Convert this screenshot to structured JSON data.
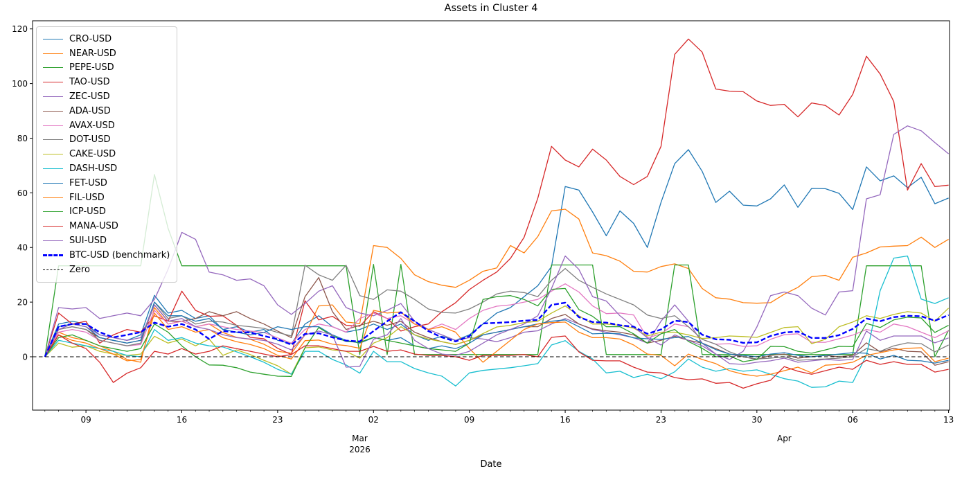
{
  "title": "Assets in Cluster 4",
  "xlabel": "Date",
  "chart_data": {
    "type": "line",
    "title": "Assets in Cluster 4",
    "xlabel": "Date",
    "ylabel": "",
    "grid": false,
    "legend_position": "upper left",
    "ylim": [
      -19.5,
      123
    ],
    "yticks": [
      0,
      20,
      40,
      60,
      80,
      100,
      120
    ],
    "x_start_date": "2026-02-06",
    "x_unit": "days",
    "n_days": 67,
    "xticks": [
      {
        "day": 3,
        "label": "09"
      },
      {
        "day": 10,
        "label": "16"
      },
      {
        "day": 17,
        "label": "23"
      },
      {
        "day": 24,
        "label": "02"
      },
      {
        "day": 31,
        "label": "09"
      },
      {
        "day": 38,
        "label": "16"
      },
      {
        "day": 45,
        "label": "23"
      },
      {
        "day": 52,
        "label": "30"
      },
      {
        "day": 59,
        "label": "06"
      },
      {
        "day": 66,
        "label": "13"
      }
    ],
    "month_labels": [
      {
        "day": 23,
        "label": "Mar",
        "year": "2026"
      },
      {
        "day": 54,
        "label": "Apr",
        "year": ""
      }
    ],
    "series": [
      {
        "name": "CRO-USD",
        "color": "#1f77b4",
        "dash": false,
        "lw": 1.3,
        "values": [
          0,
          12,
          13,
          12,
          8,
          7,
          6,
          8,
          22.5,
          16,
          17,
          14,
          15,
          10,
          11,
          9,
          10,
          6,
          4.8,
          12,
          15,
          11,
          9,
          10,
          12,
          10,
          12,
          8,
          6,
          7.5,
          6,
          8,
          12,
          16,
          18,
          22,
          26,
          33,
          62.3,
          61,
          53,
          44.3,
          53.4,
          48.8,
          40,
          56.5,
          70.7,
          75.8,
          67.9,
          56.5,
          60.6,
          55.5,
          55.2,
          57.8,
          62.9,
          54.7,
          61.6,
          61.5,
          59.8,
          53.9,
          69.5,
          64.4,
          66.2,
          61.9,
          65.7,
          56,
          58.1
        ]
      },
      {
        "name": "NEAR-USD",
        "color": "#ff7f0e",
        "dash": false,
        "lw": 1.3,
        "values": [
          0,
          9,
          7,
          6,
          4,
          2,
          -1,
          -2,
          18,
          12,
          13,
          11,
          12,
          8.9,
          7.1,
          6.4,
          4.6,
          2,
          1.3,
          8,
          18.6,
          19,
          12.7,
          12.2,
          40.7,
          40,
          36,
          30,
          27.5,
          26.2,
          25.4,
          28,
          31.3,
          32.5,
          40.7,
          38,
          44,
          53.4,
          54,
          50.4,
          38,
          37,
          35,
          31.3,
          31,
          33,
          34,
          32.3,
          25,
          21.6,
          21.1,
          19.8,
          19.6,
          19.8,
          22.9,
          25.4,
          29.3,
          29.8,
          28,
          36.4,
          38,
          40.2,
          40.5,
          40.7,
          43.8,
          40,
          43
        ]
      },
      {
        "name": "PEPE-USD",
        "color": "#2ca02c",
        "dash": false,
        "lw": 1.3,
        "values": [
          0,
          33.3,
          33.3,
          33.3,
          33.3,
          33.3,
          33.3,
          33.3,
          66.7,
          47,
          33.3,
          33.3,
          33.3,
          33.3,
          33.3,
          33.3,
          33.3,
          33.3,
          33.3,
          33.3,
          33.3,
          33.3,
          33.3,
          0.8,
          33.8,
          0.8,
          33.8,
          0.8,
          0.8,
          0.8,
          0.8,
          0.8,
          0.8,
          0.8,
          0.8,
          0.8,
          0.8,
          33.6,
          33.6,
          33.6,
          33.6,
          0.8,
          0.8,
          0.8,
          0.8,
          0.8,
          33.6,
          33.6,
          0.8,
          0.8,
          0.8,
          0.8,
          0.8,
          0.8,
          0.8,
          0.8,
          0.8,
          0.8,
          0.8,
          0.8,
          33.3,
          33.3,
          33.3,
          33.3,
          33.3,
          0,
          9.7
        ]
      },
      {
        "name": "TAO-USD",
        "color": "#d62728",
        "dash": false,
        "lw": 1.3,
        "values": [
          0,
          16,
          12,
          13,
          5,
          8,
          10,
          9,
          15,
          13,
          24,
          17,
          14.8,
          15,
          11.5,
          7.1,
          6.6,
          3.1,
          0.8,
          20.5,
          13.5,
          14.8,
          11.5,
          11.2,
          16.5,
          14,
          9.4,
          11,
          12,
          16.5,
          19.8,
          24.6,
          28,
          31,
          36,
          43.7,
          58,
          77,
          72,
          69.5,
          76,
          72,
          66,
          63,
          66,
          77,
          110.7,
          116.3,
          111.5,
          98,
          97.2,
          97,
          93.6,
          92,
          92.4,
          87.8,
          92.9,
          92,
          88.5,
          96,
          110,
          103.5,
          93.4,
          61,
          70.7,
          62.3,
          62.8
        ]
      },
      {
        "name": "ZEC-USD",
        "color": "#9467bd",
        "dash": false,
        "lw": 1.3,
        "values": [
          0,
          18,
          17.5,
          18,
          14,
          15,
          16,
          15,
          21,
          32,
          45.5,
          43,
          31,
          30,
          28,
          28.5,
          26,
          19,
          15.5,
          19.5,
          24,
          26,
          18,
          16,
          15,
          17,
          19.5,
          13,
          10,
          8,
          6,
          7,
          6.5,
          5.5,
          7,
          9,
          9.5,
          12,
          14,
          12,
          10,
          9,
          8,
          7,
          5,
          13,
          19,
          13,
          5,
          1,
          -1,
          2,
          10.9,
          22.4,
          23.7,
          22.4,
          17.8,
          15.3,
          23.7,
          24.2,
          57.8,
          59.3,
          81.4,
          84.5,
          82.7,
          78.4,
          74.3
        ]
      },
      {
        "name": "ADA-USD",
        "color": "#8c564b",
        "dash": false,
        "lw": 1.3,
        "values": [
          0,
          10,
          11,
          10,
          7,
          6,
          5,
          6,
          19,
          13,
          13,
          14,
          16.5,
          15,
          16.5,
          14,
          12,
          9.4,
          7,
          22,
          29,
          16.5,
          10,
          11.5,
          13,
          11.5,
          13,
          9,
          7,
          5.5,
          4.5,
          6,
          8,
          9,
          10,
          11,
          11,
          14,
          15.5,
          12,
          10.2,
          9.5,
          9,
          8,
          5,
          6,
          7.5,
          6,
          5,
          3,
          1,
          0,
          -1,
          0.5,
          1,
          -0.5,
          0,
          0.5,
          0,
          0.5,
          5.1,
          1.8,
          3.1,
          2,
          1.8,
          -3.1,
          -1.8
        ]
      },
      {
        "name": "AVAX-USD",
        "color": "#e377c2",
        "dash": false,
        "lw": 1.3,
        "values": [
          0,
          9,
          10,
          9,
          6,
          5,
          4,
          4.5,
          17,
          12,
          13,
          11,
          12,
          11,
          10,
          9.4,
          8.9,
          6.9,
          5,
          10,
          12,
          11,
          9,
          14,
          16,
          14,
          15,
          12,
          10,
          12,
          10,
          14,
          17,
          18.5,
          19,
          20,
          21,
          24,
          26.7,
          23.7,
          18.6,
          15.8,
          16,
          15.3,
          6.9,
          8.4,
          12,
          11,
          6.4,
          4.6,
          4.8,
          3.8,
          4,
          6.4,
          8.1,
          8.4,
          5.3,
          5.3,
          6.6,
          7.9,
          10,
          9,
          12,
          11,
          9,
          7,
          9.5
        ]
      },
      {
        "name": "DOT-USD",
        "color": "#7f7f7f",
        "dash": false,
        "lw": 1.3,
        "values": [
          0,
          10,
          11,
          10,
          6,
          5,
          4,
          5,
          20,
          14,
          15,
          12,
          13,
          12.7,
          11.5,
          11,
          10.4,
          8.9,
          7.6,
          33.5,
          30,
          28,
          33.5,
          22.4,
          21,
          24.5,
          24,
          21,
          17.5,
          16.2,
          16,
          17.5,
          20,
          23,
          24,
          23.5,
          22,
          28,
          32.3,
          28,
          25.4,
          23,
          21,
          19,
          15.3,
          14,
          15,
          11,
          6.4,
          4.6,
          1.8,
          0,
          -0.8,
          -0.5,
          0,
          -1.3,
          -1,
          -0.8,
          -0.5,
          0,
          3,
          2,
          4,
          5.1,
          4.8,
          1.8,
          4.3
        ]
      },
      {
        "name": "CAKE-USD",
        "color": "#bcbd22",
        "dash": false,
        "lw": 1.3,
        "values": [
          0,
          5,
          3.5,
          4,
          2,
          1,
          0.5,
          1,
          7.5,
          5,
          6.5,
          4,
          6.5,
          0.5,
          2.5,
          0.8,
          -1.3,
          -3.3,
          -6.4,
          3.3,
          3.6,
          2.5,
          2,
          -0.5,
          5,
          7,
          11,
          8,
          6.5,
          5.5,
          4.5,
          6,
          8.5,
          10.9,
          11.5,
          12.5,
          13,
          16,
          18.6,
          15,
          12,
          12,
          11.5,
          10.5,
          7.6,
          9,
          9,
          8,
          6.7,
          7,
          7.6,
          7.4,
          7.1,
          8.9,
          10.7,
          11,
          4.8,
          6.4,
          11,
          12.7,
          15,
          14,
          15.5,
          16.5,
          16,
          13,
          17.8
        ]
      },
      {
        "name": "DASH-USD",
        "color": "#17becf",
        "dash": false,
        "lw": 1.3,
        "values": [
          0,
          6,
          5,
          4,
          3,
          2,
          0.5,
          0,
          10,
          6,
          7,
          5,
          4,
          3.6,
          1.8,
          0,
          -2,
          -4.6,
          -6.4,
          2,
          2,
          -1,
          -3,
          -6,
          2,
          -1.8,
          -1.8,
          -4.3,
          -5.9,
          -7.1,
          -10.7,
          -5.9,
          -5,
          -4.5,
          -4,
          -3.3,
          -2.5,
          4.3,
          5.9,
          2,
          -0.8,
          -5.9,
          -5.3,
          -7.6,
          -6.4,
          -8.1,
          -5.5,
          -0.8,
          -3.8,
          -5.3,
          -4.3,
          -5.3,
          -4.8,
          -6.4,
          -8,
          -8.9,
          -11.2,
          -11,
          -8.9,
          -9.4,
          0.5,
          24.2,
          36.1,
          36.9,
          21.1,
          19.5,
          21.6
        ]
      },
      {
        "name": "FET-USD",
        "color": "#1f77b4",
        "dash": false,
        "lw": 1.3,
        "values": [
          0,
          11,
          12,
          11,
          7,
          6,
          5,
          6,
          20,
          15,
          15,
          13,
          14,
          10,
          9,
          8,
          8.9,
          11,
          10,
          11,
          11,
          8,
          6,
          5,
          7,
          6,
          7,
          4,
          3,
          4,
          3,
          5,
          8,
          9,
          10,
          11,
          12,
          13,
          13.5,
          11,
          8.4,
          8.6,
          8.4,
          6.9,
          6.6,
          6.4,
          7,
          7.4,
          5,
          2.6,
          1,
          0.5,
          0,
          1,
          1.5,
          0.5,
          0,
          0.5,
          1,
          1.5,
          1.3,
          -0.8,
          0.5,
          -1.3,
          -1.5,
          -2.3,
          -1.3
        ]
      },
      {
        "name": "FIL-USD",
        "color": "#ff7f0e",
        "dash": false,
        "lw": 1.3,
        "values": [
          0,
          8,
          6,
          5,
          3,
          1,
          -1.5,
          -1,
          16,
          10,
          11,
          9,
          10,
          7,
          5.5,
          4.5,
          3,
          0.5,
          -0.8,
          5.9,
          6.1,
          4.6,
          4.1,
          3.1,
          17,
          16,
          16.4,
          12,
          10,
          11,
          9,
          3,
          -2,
          2,
          6,
          10,
          12,
          12.5,
          12.7,
          9,
          7,
          7,
          6.5,
          4.3,
          1,
          0.5,
          -3.3,
          1,
          -1,
          -2.5,
          -5.1,
          -6.4,
          -7.1,
          -6.4,
          -5.1,
          -3.8,
          -5.9,
          -3.1,
          -2.8,
          -2,
          0.5,
          1.5,
          2.5,
          3.1,
          3.3,
          -1.8,
          -0.5
        ]
      },
      {
        "name": "ICP-USD",
        "color": "#2ca02c",
        "dash": false,
        "lw": 1.3,
        "values": [
          0,
          7,
          8,
          6,
          4,
          3,
          2,
          3,
          12,
          9,
          4,
          0,
          -3,
          -3.1,
          -4,
          -5.6,
          -6.4,
          -7.1,
          -7.2,
          3.3,
          10.7,
          7.6,
          5.6,
          5.3,
          7.1,
          6,
          5,
          4,
          3,
          2.5,
          2,
          5,
          21,
          22,
          22.4,
          21,
          18.6,
          24.7,
          25,
          17.3,
          14.8,
          11,
          11,
          8.4,
          5,
          8.4,
          10,
          5.6,
          3.1,
          0,
          0.3,
          -1.8,
          -1,
          3.8,
          3.7,
          2,
          1.3,
          2.5,
          3.8,
          3.7,
          12.2,
          10.7,
          13.5,
          14.5,
          14.2,
          8.9,
          11.5
        ]
      },
      {
        "name": "MANA-USD",
        "color": "#d62728",
        "dash": false,
        "lw": 1.3,
        "values": [
          0,
          8,
          5,
          3,
          -2,
          -9.4,
          -6,
          -4,
          2,
          1,
          3,
          1,
          2,
          4,
          3,
          2,
          1,
          0,
          0.8,
          4,
          4,
          3,
          2,
          2,
          3.8,
          2,
          2.5,
          1,
          0.5,
          0.5,
          0,
          -1.3,
          0.5,
          0.5,
          0.5,
          0.8,
          0,
          7.1,
          7.6,
          1.8,
          -1.3,
          -1.5,
          -1.5,
          -3.8,
          -5.6,
          -5.9,
          -7.6,
          -8.4,
          -8.1,
          -9.7,
          -9.4,
          -11.5,
          -9.9,
          -8.6,
          -3.6,
          -5.3,
          -6.4,
          -5.1,
          -3.8,
          -4.6,
          -1.3,
          -2.8,
          -1.8,
          -2.8,
          -2.8,
          -5.6,
          -4.6
        ]
      },
      {
        "name": "SUI-USD",
        "color": "#9467bd",
        "dash": false,
        "lw": 1.3,
        "values": [
          0,
          10,
          12,
          11,
          8,
          7,
          6,
          7,
          19,
          13,
          14,
          11,
          10,
          8.1,
          7,
          6.5,
          6,
          4.6,
          2.5,
          8,
          9.4,
          8,
          -3.8,
          -3.5,
          6.4,
          8,
          14,
          6,
          3,
          1,
          0.5,
          2,
          5,
          8,
          10,
          12,
          15,
          25,
          36.9,
          32,
          22,
          20.4,
          15,
          11,
          6.9,
          4.3,
          8,
          6,
          4,
          1,
          -2.5,
          -2.8,
          -2,
          -1.5,
          -0.5,
          -2,
          -1.5,
          -1,
          -1.3,
          -1,
          9.4,
          6,
          7.6,
          7.6,
          7.6,
          5.1,
          6.9
        ]
      },
      {
        "name": "BTC-USD (benchmark)",
        "color": "#0000ff",
        "dash": true,
        "lw": 2.4,
        "values": [
          0,
          11,
          12,
          12,
          9,
          7.1,
          8,
          9,
          12.5,
          11,
          12,
          10,
          6.5,
          9.4,
          9,
          8.9,
          7.6,
          6.4,
          4.4,
          8.4,
          8.6,
          7.1,
          5.9,
          5.6,
          9.4,
          13,
          16.3,
          13,
          9.4,
          7.1,
          5.6,
          7.5,
          12.2,
          12.4,
          12.7,
          13.2,
          13.5,
          19,
          19.8,
          14.5,
          12.7,
          12.5,
          11.5,
          11,
          8.4,
          10,
          13.2,
          12.7,
          8.1,
          6.4,
          6.2,
          5.1,
          5.3,
          7.6,
          8.9,
          9.2,
          6.9,
          6.9,
          7.9,
          10.2,
          14,
          13,
          14.5,
          15,
          14.8,
          13.2,
          15.3
        ]
      },
      {
        "name": "Zero",
        "color": "#000000",
        "dash": true,
        "lw": 1.1,
        "constant": 0
      }
    ]
  }
}
